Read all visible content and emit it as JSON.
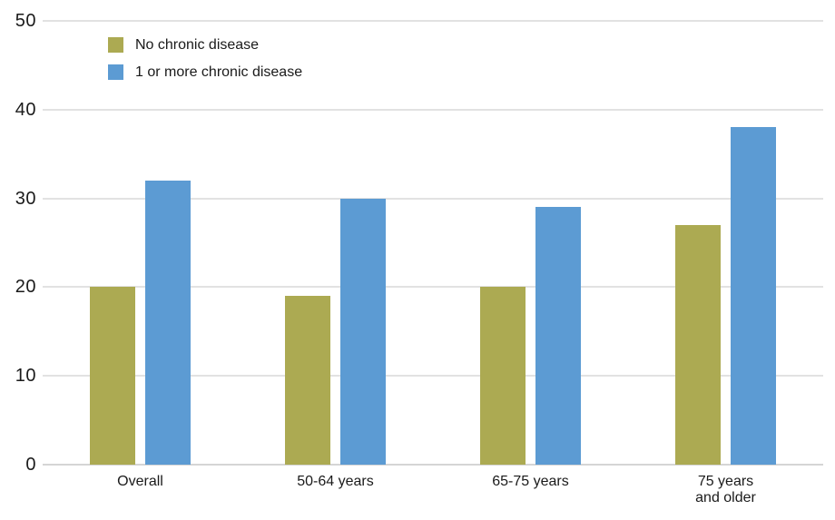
{
  "chart_data": {
    "type": "bar",
    "title": "",
    "categories": [
      "Overall",
      "50-64 years",
      "65-75 years",
      "75 years\nand older"
    ],
    "series": [
      {
        "name": "No chronic disease",
        "color": "#ACAA52",
        "values": [
          20,
          19,
          20,
          27
        ]
      },
      {
        "name": "1 or more chronic disease",
        "color": "#5C9BD3",
        "values": [
          32,
          30,
          29,
          38
        ]
      }
    ],
    "xlabel": "",
    "ylabel": "",
    "ylim": [
      0,
      50
    ],
    "yticks": [
      0,
      10,
      20,
      30,
      40,
      50
    ],
    "grid": "horizontal",
    "legend_position": "top-left"
  },
  "colors": {
    "background": "#ffffff",
    "gridline": "#e2e2e2",
    "axis_baseline": "#d5d5d5",
    "text": "#1a1a1a"
  }
}
